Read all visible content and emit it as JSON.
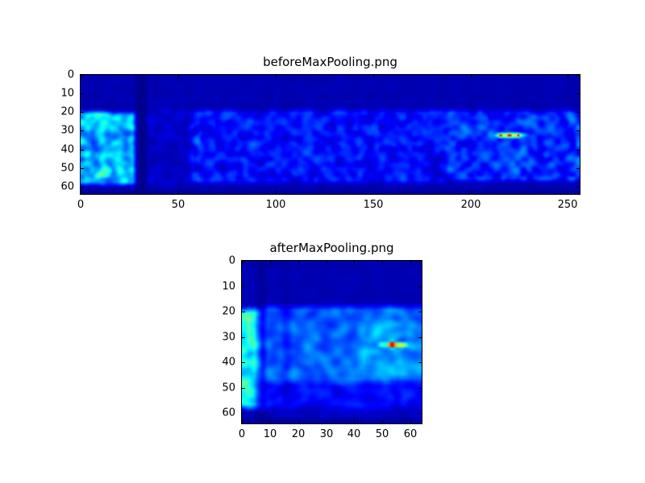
{
  "figure": {
    "background_color": "#ffffff",
    "border_color": "#000000",
    "colormap_low_color": "#000080",
    "hotspot_color": "#d62700"
  },
  "chart_data": [
    {
      "type": "heatmap",
      "title": "beforeMaxPooling.png",
      "xlabel": "",
      "ylabel": "",
      "colormap": "jet",
      "legend": "none",
      "grid_lines": false,
      "x_ticks": [
        0,
        50,
        100,
        150,
        200,
        250
      ],
      "y_ticks": [
        0,
        10,
        20,
        30,
        40,
        50,
        60
      ],
      "x_range": [
        0,
        256
      ],
      "y_range": [
        0,
        64
      ],
      "y_axis_inverted_zero_at_top": true,
      "grid": {
        "rows": 64,
        "cols": 256
      },
      "render": {
        "seed": 7,
        "scale1": 2.8,
        "scale2": 1.4,
        "bg": 0.03,
        "bg_amp": 0.04,
        "regions": [
          {
            "name": "left-bright-block",
            "rows": [
              20,
              59
            ],
            "cols": [
              0,
              28
            ],
            "mean": 0.3,
            "amp": 0.28
          },
          {
            "name": "post-band-dim",
            "rows": [
              18,
              60
            ],
            "cols": [
              34,
              57
            ],
            "mean": 0.07,
            "amp": 0.06
          },
          {
            "name": "mid-speckle",
            "rows": [
              19,
              58
            ],
            "cols": [
              56,
              188
            ],
            "mean": 0.14,
            "amp": 0.14
          },
          {
            "name": "right-speckle",
            "rows": [
              19,
              57
            ],
            "cols": [
              188,
              253
            ],
            "mean": 0.17,
            "amp": 0.17
          },
          {
            "name": "right-edge-bright",
            "rows": [
              20,
              57
            ],
            "cols": [
              250,
              256
            ],
            "mean": 0.2,
            "amp": 0.2
          },
          {
            "name": "dashed-stripe-x60",
            "rows": [
              20,
              57
            ],
            "cols": [
              59,
              62
            ],
            "mean": 0.18,
            "amp": 0.26
          }
        ],
        "dark_cols": [
          {
            "cols": [
              28,
              34
            ],
            "factor": 0.3
          }
        ],
        "dark_rows": [
          {
            "rows": [
              62,
              64
            ],
            "factor": 0.5
          }
        ],
        "hotspots": [
          {
            "row": 32.5,
            "col": 215.5,
            "peak": 1.0,
            "sx": 1.1,
            "sy": 0.8
          },
          {
            "row": 32.5,
            "col": 220.0,
            "peak": 1.0,
            "sx": 1.1,
            "sy": 0.8
          },
          {
            "row": 32.5,
            "col": 224.5,
            "peak": 0.95,
            "sx": 1.1,
            "sy": 0.8
          },
          {
            "row": 32.5,
            "col": 220.0,
            "peak": 0.62,
            "sx": 6.5,
            "sy": 1.3
          }
        ]
      }
    },
    {
      "type": "heatmap",
      "title": "afterMaxPooling.png",
      "xlabel": "",
      "ylabel": "",
      "colormap": "jet",
      "legend": "none",
      "grid_lines": false,
      "x_ticks": [
        0,
        10,
        20,
        30,
        40,
        50,
        60
      ],
      "y_ticks": [
        0,
        10,
        20,
        30,
        40,
        50,
        60
      ],
      "x_range": [
        0,
        64
      ],
      "y_range": [
        0,
        64
      ],
      "y_axis_inverted_zero_at_top": true,
      "grid": {
        "rows": 64,
        "cols": 64
      },
      "render": {
        "seed": 13,
        "scale1": 2.2,
        "scale2": 1.1,
        "bg": 0.03,
        "bg_amp": 0.04,
        "regions": [
          {
            "name": "left-bright-block",
            "rows": [
              19,
              58
            ],
            "cols": [
              0,
              8
            ],
            "mean": 0.34,
            "amp": 0.28
          },
          {
            "name": "upper-main",
            "rows": [
              18,
              48
            ],
            "cols": [
              8,
              64
            ],
            "mean": 0.22,
            "amp": 0.13
          },
          {
            "name": "hotspot-halo-region",
            "rows": [
              24,
              46
            ],
            "cols": [
              42,
              64
            ],
            "mean": 0.28,
            "amp": 0.16
          },
          {
            "name": "lower-main",
            "rows": [
              48,
              58
            ],
            "cols": [
              8,
              64
            ],
            "mean": 0.13,
            "amp": 0.1
          },
          {
            "name": "fade-bottom",
            "rows": [
              58,
              62
            ],
            "cols": [
              8,
              64
            ],
            "mean": 0.07,
            "amp": 0.05
          }
        ],
        "dark_cols": [
          {
            "cols": [
              6.5,
              8.5
            ],
            "factor": 0.3
          },
          {
            "cols": [
              15,
              17
            ],
            "factor": 0.7
          }
        ],
        "dark_rows": [
          {
            "rows": [
              62,
              64
            ],
            "factor": 0.6
          }
        ],
        "hotspots": [
          {
            "row": 33.0,
            "col": 53.5,
            "peak": 1.05,
            "sx": 1.5,
            "sy": 1.0
          },
          {
            "row": 33.2,
            "col": 56.5,
            "peak": 0.62,
            "sx": 2.8,
            "sy": 1.1
          },
          {
            "row": 33.0,
            "col": 50.5,
            "peak": 0.45,
            "sx": 2.4,
            "sy": 1.5
          }
        ]
      }
    }
  ]
}
